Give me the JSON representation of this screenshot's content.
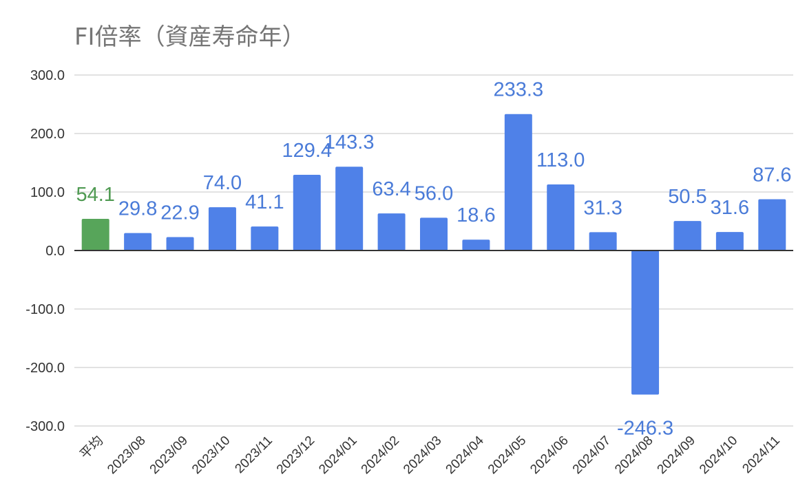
{
  "chart_data": {
    "type": "bar",
    "title": "FI倍率（資産寿命年）",
    "categories": [
      "平均",
      "2023/08",
      "2023/09",
      "2023/10",
      "2023/11",
      "2023/12",
      "2024/01",
      "2024/02",
      "2024/03",
      "2024/04",
      "2024/05",
      "2024/06",
      "2024/07",
      "2024/08",
      "2024/09",
      "2024/10",
      "2024/11"
    ],
    "values": [
      54.1,
      29.8,
      22.9,
      74.0,
      41.1,
      129.4,
      143.3,
      63.4,
      56.0,
      18.6,
      233.3,
      113.0,
      31.3,
      -246.3,
      50.5,
      31.6,
      87.6
    ],
    "data_labels": [
      "54.1",
      "29.8",
      "22.9",
      "74.0",
      "41.1",
      "129.4",
      "143.3",
      "63.4",
      "56.0",
      "18.6",
      "233.3",
      "113.0",
      "31.3",
      "-246.3",
      "50.5",
      "31.6",
      "87.6"
    ],
    "ylim": [
      -300,
      300
    ],
    "yticks": [
      300,
      200,
      100,
      0,
      -100,
      -200,
      -300
    ],
    "ytick_labels": [
      "300.0",
      "200.0",
      "100.0",
      "0.0",
      "-100.0",
      "-200.0",
      "-300.0"
    ],
    "grid": true,
    "colors": {
      "default": "#4f81e8",
      "highlight": "#57a55a",
      "label_default": "#4a7bd8",
      "label_highlight": "#4f9a52",
      "grid": "#d9d9d9",
      "axis": "#333333",
      "title": "#757575"
    },
    "highlight_index": 0
  }
}
